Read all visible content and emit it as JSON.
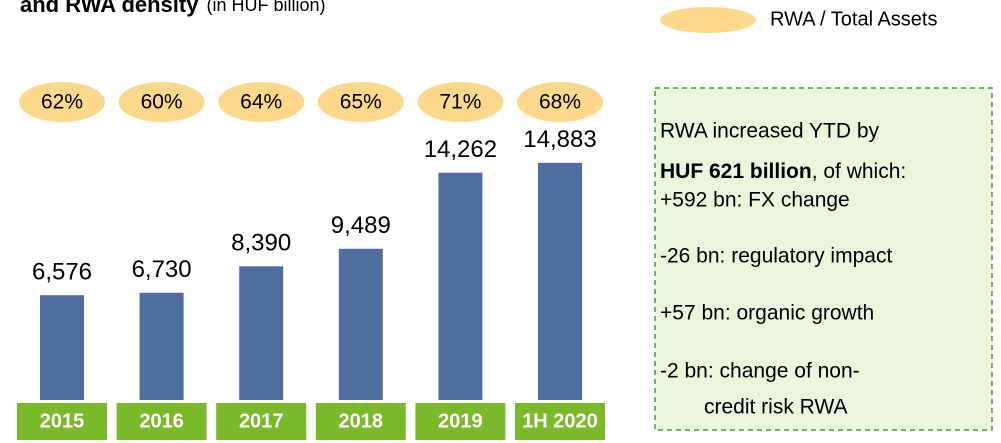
{
  "chart_data": {
    "type": "bar",
    "title": "and RWA density",
    "subtitle": "(in HUF billion)",
    "categories": [
      "2015",
      "2016",
      "2017",
      "2018",
      "2019",
      "1H 2020"
    ],
    "values": [
      6576,
      6730,
      8390,
      9489,
      14262,
      14883
    ],
    "value_labels": [
      "6,576",
      "6,730",
      "8,390",
      "9,489",
      "14,262",
      "14,883"
    ],
    "color": "#4f6d9e",
    "ylim": [
      0,
      16000
    ],
    "density": {
      "name": "RWA / Total Assets",
      "color": "#fbd88b",
      "values": [
        62,
        60,
        64,
        65,
        71,
        68
      ],
      "value_labels": [
        "62%",
        "60%",
        "64%",
        "65%",
        "71%",
        "68%"
      ]
    },
    "category_color": "#7ab929",
    "note": {
      "line1": "RWA increased YTD by",
      "bold": "HUF 621 billion",
      "rest": ", of which:",
      "items": [
        "+592 bn: FX change",
        "-26 bn: regulatory impact",
        "+57 bn: organic growth",
        "-2 bn: change of non-"
      ],
      "continuation": "credit risk RWA"
    }
  }
}
